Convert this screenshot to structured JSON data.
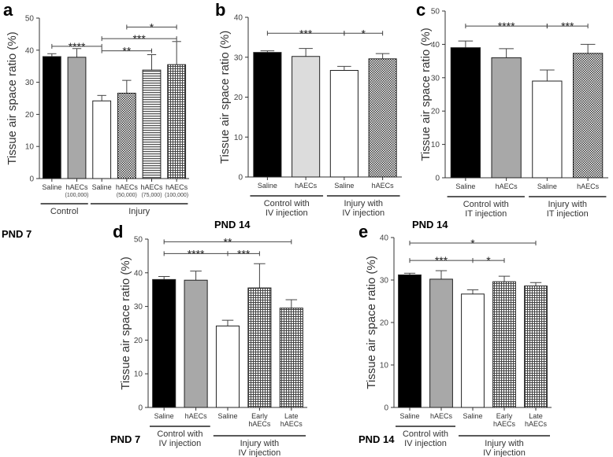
{
  "chart_data": [
    {
      "type": "bar",
      "panel": "a",
      "pnd": "PND 7",
      "ylabel": "Tissue air space ratio (%)",
      "ylim": [
        0,
        50
      ],
      "yticks": [
        0,
        10,
        20,
        30,
        40,
        50
      ],
      "categories": [
        "Saline",
        "hAECs",
        "Saline",
        "hAECs",
        "hAECs",
        "hAECs"
      ],
      "sublabels": [
        "",
        "(100,000)",
        "",
        "(50,000)",
        "(75,000)",
        "(100,000)"
      ],
      "values": [
        38.0,
        37.8,
        24.2,
        26.6,
        33.8,
        35.5
      ],
      "errors": [
        0.9,
        2.7,
        1.7,
        4.0,
        4.8,
        7.2
      ],
      "fills": [
        "black",
        "gray",
        "white",
        "checker",
        "hstripe",
        "grid"
      ],
      "groups": [
        {
          "label": "Control",
          "from": 0,
          "to": 1
        },
        {
          "label": "Injury",
          "from": 2,
          "to": 5
        }
      ],
      "significance": [
        {
          "from": 0,
          "to": 2,
          "y": 41.2,
          "label": "****"
        },
        {
          "from": 2,
          "to": 4,
          "y": 39.8,
          "label": "**"
        },
        {
          "from": 2,
          "to": 5,
          "y": 43.6,
          "label": "***"
        },
        {
          "from": 3,
          "to": 5,
          "y": 47.2,
          "label": "*"
        }
      ]
    },
    {
      "type": "bar",
      "panel": "b",
      "pnd": "PND 14",
      "ylabel": "Tissue air space ratio (%)",
      "ylim": [
        0,
        40
      ],
      "yticks": [
        0,
        10,
        20,
        30,
        40
      ],
      "categories": [
        "Saline",
        "hAECs",
        "Saline",
        "hAECs"
      ],
      "sublabels": [
        "",
        "",
        "",
        ""
      ],
      "values": [
        31.2,
        30.2,
        26.7,
        29.6
      ],
      "errors": [
        0.4,
        2.0,
        1.0,
        1.3
      ],
      "fills": [
        "black",
        "lightgray",
        "white",
        "checker"
      ],
      "groups": [
        {
          "label": "Control with IV injection",
          "from": 0,
          "to": 1
        },
        {
          "label": "Injury with IV injection",
          "from": 2,
          "to": 3
        }
      ],
      "significance": [
        {
          "from": 0,
          "to": 2,
          "y": 36,
          "label": "***"
        },
        {
          "from": 2,
          "to": 3,
          "y": 36,
          "label": "*"
        }
      ]
    },
    {
      "type": "bar",
      "panel": "c",
      "pnd": "PND 14",
      "ylabel": "Tissue air space ratio (%)",
      "ylim": [
        0,
        50
      ],
      "yticks": [
        0,
        10,
        20,
        30,
        40,
        50
      ],
      "categories": [
        "Saline",
        "hAECs",
        "Saline",
        "hAECs"
      ],
      "sublabels": [
        "",
        "",
        "",
        ""
      ],
      "values": [
        39.0,
        36.0,
        29.0,
        37.3
      ],
      "errors": [
        2.0,
        2.7,
        3.3,
        2.7
      ],
      "fills": [
        "black",
        "gray",
        "white",
        "checker"
      ],
      "groups": [
        {
          "label": "Control with IT injection",
          "from": 0,
          "to": 1
        },
        {
          "label": "Injury with IT injection",
          "from": 2,
          "to": 3
        }
      ],
      "significance": [
        {
          "from": 0,
          "to": 2,
          "y": 45.5,
          "label": "****"
        },
        {
          "from": 2,
          "to": 3,
          "y": 45.5,
          "label": "***"
        }
      ]
    },
    {
      "type": "bar",
      "panel": "d",
      "pnd": "PND 7",
      "ylabel": "Tissue air space ratio (%)",
      "ylim": [
        0,
        50
      ],
      "yticks": [
        0,
        10,
        20,
        30,
        40,
        50
      ],
      "categories": [
        "Saline",
        "hAECs",
        "Saline",
        "Early hAECs",
        "Late hAECs"
      ],
      "sublabels": [
        "",
        "",
        "",
        "",
        ""
      ],
      "values": [
        38.0,
        37.8,
        24.2,
        35.5,
        29.5
      ],
      "errors": [
        0.9,
        2.7,
        1.7,
        7.2,
        2.5
      ],
      "fills": [
        "black",
        "gray",
        "white",
        "grid",
        "grid"
      ],
      "groups": [
        {
          "label": "Control with IV injection",
          "from": 0,
          "to": 1
        },
        {
          "label": "Injury with IV injection",
          "from": 2,
          "to": 4
        }
      ],
      "significance": [
        {
          "from": 0,
          "to": 4,
          "y": 49.2,
          "label": "**"
        },
        {
          "from": 0,
          "to": 2,
          "y": 45.7,
          "label": "****"
        },
        {
          "from": 2,
          "to": 3,
          "y": 45.7,
          "label": "***"
        }
      ]
    },
    {
      "type": "bar",
      "panel": "e",
      "pnd": "PND 14",
      "ylabel": "Tissue air space ratio (%)",
      "ylim": [
        0,
        40
      ],
      "yticks": [
        0,
        10,
        20,
        30,
        40
      ],
      "categories": [
        "Saline",
        "hAECs",
        "Saline",
        "Early hAECs",
        "Late hAECs"
      ],
      "sublabels": [
        "",
        "",
        "",
        "",
        ""
      ],
      "values": [
        31.2,
        30.2,
        26.7,
        29.6,
        28.6
      ],
      "errors": [
        0.4,
        2.0,
        1.0,
        1.3,
        0.8
      ],
      "fills": [
        "black",
        "gray",
        "white",
        "grid",
        "grid"
      ],
      "groups": [
        {
          "label": "Control with IV injection",
          "from": 0,
          "to": 1
        },
        {
          "label": "Injury with IV injection",
          "from": 2,
          "to": 4
        }
      ],
      "significance": [
        {
          "from": 0,
          "to": 4,
          "y": 38.7,
          "label": "*"
        },
        {
          "from": 0,
          "to": 2,
          "y": 34.6,
          "label": "***"
        },
        {
          "from": 2,
          "to": 3,
          "y": 34.6,
          "label": "*"
        }
      ]
    }
  ]
}
